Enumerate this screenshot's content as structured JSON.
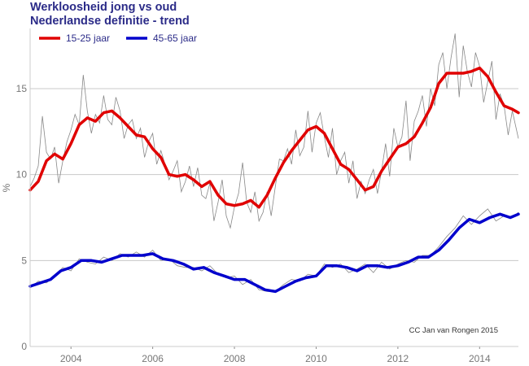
{
  "chart_data": {
    "type": "line",
    "title": [
      "Werkloosheid jong vs oud",
      "Nederlandse definitie - trend"
    ],
    "ylabel": "%",
    "xlabel": "",
    "xlim": [
      2003.0,
      2014.95
    ],
    "ylim": [
      0,
      18.5
    ],
    "x_ticks": [
      2004,
      2006,
      2008,
      2010,
      2012,
      2014
    ],
    "y_ticks": [
      0,
      5,
      10,
      15
    ],
    "grid": "horizontal",
    "legend_position": "top-left",
    "credit": "CC Jan van Rongen 2015",
    "colors": {
      "red": "#e00000",
      "blue": "#0000cc",
      "raw": "#888888",
      "grid": "#c8c8c8"
    },
    "series": [
      {
        "name": "15-25 jaar",
        "color": "#e00000",
        "kind": "trend",
        "x": [
          2003.0,
          2003.2,
          2003.4,
          2003.6,
          2003.8,
          2004.0,
          2004.2,
          2004.4,
          2004.6,
          2004.8,
          2005.0,
          2005.2,
          2005.4,
          2005.6,
          2005.8,
          2006.0,
          2006.2,
          2006.4,
          2006.6,
          2006.8,
          2007.0,
          2007.2,
          2007.4,
          2007.6,
          2007.8,
          2008.0,
          2008.2,
          2008.4,
          2008.6,
          2008.8,
          2009.0,
          2009.2,
          2009.4,
          2009.6,
          2009.8,
          2010.0,
          2010.2,
          2010.4,
          2010.6,
          2010.8,
          2011.0,
          2011.2,
          2011.4,
          2011.6,
          2011.8,
          2012.0,
          2012.2,
          2012.4,
          2012.6,
          2012.8,
          2013.0,
          2013.2,
          2013.4,
          2013.6,
          2013.8,
          2014.0,
          2014.2,
          2014.4,
          2014.6,
          2014.8,
          2014.95
        ],
        "y": [
          9.1,
          9.6,
          10.8,
          11.2,
          10.9,
          11.8,
          12.9,
          13.3,
          13.1,
          13.6,
          13.7,
          13.3,
          12.8,
          12.3,
          12.2,
          11.5,
          11.0,
          10.0,
          9.9,
          10.0,
          9.7,
          9.3,
          9.6,
          8.8,
          8.3,
          8.2,
          8.3,
          8.5,
          8.1,
          8.8,
          9.8,
          10.7,
          11.4,
          12.0,
          12.6,
          12.8,
          12.4,
          11.5,
          10.6,
          10.3,
          9.7,
          9.1,
          9.3,
          10.2,
          10.9,
          11.6,
          11.8,
          12.2,
          13.0,
          13.9,
          15.3,
          15.9,
          15.9,
          15.9,
          16.0,
          16.2,
          15.7,
          14.8,
          14.0,
          13.8,
          13.6
        ]
      },
      {
        "name": "45-65 jaar",
        "color": "#0000cc",
        "kind": "trend",
        "x": [
          2003.0,
          2003.25,
          2003.5,
          2003.75,
          2004.0,
          2004.25,
          2004.5,
          2004.75,
          2005.0,
          2005.25,
          2005.5,
          2005.75,
          2006.0,
          2006.25,
          2006.5,
          2006.75,
          2007.0,
          2007.25,
          2007.5,
          2007.75,
          2008.0,
          2008.25,
          2008.5,
          2008.75,
          2009.0,
          2009.25,
          2009.5,
          2009.75,
          2010.0,
          2010.25,
          2010.5,
          2010.75,
          2011.0,
          2011.25,
          2011.5,
          2011.75,
          2012.0,
          2012.25,
          2012.5,
          2012.75,
          2013.0,
          2013.25,
          2013.5,
          2013.75,
          2014.0,
          2014.25,
          2014.5,
          2014.75,
          2014.95
        ],
        "y": [
          3.5,
          3.7,
          3.9,
          4.4,
          4.6,
          5.0,
          5.0,
          4.9,
          5.1,
          5.3,
          5.3,
          5.3,
          5.4,
          5.1,
          5.0,
          4.8,
          4.5,
          4.6,
          4.3,
          4.1,
          3.9,
          3.9,
          3.6,
          3.3,
          3.2,
          3.5,
          3.8,
          4.0,
          4.1,
          4.7,
          4.7,
          4.6,
          4.4,
          4.7,
          4.7,
          4.6,
          4.7,
          4.9,
          5.2,
          5.2,
          5.6,
          6.2,
          6.9,
          7.4,
          7.2,
          7.5,
          7.7,
          7.5,
          7.7
        ]
      },
      {
        "kind": "raw",
        "color": "#888888",
        "x": [
          2003.0,
          2003.1,
          2003.2,
          2003.3,
          2003.4,
          2003.5,
          2003.6,
          2003.7,
          2003.8,
          2003.9,
          2004.0,
          2004.1,
          2004.2,
          2004.3,
          2004.4,
          2004.5,
          2004.6,
          2004.7,
          2004.8,
          2004.9,
          2005.0,
          2005.1,
          2005.2,
          2005.3,
          2005.4,
          2005.5,
          2005.6,
          2005.7,
          2005.8,
          2005.9,
          2006.0,
          2006.1,
          2006.2,
          2006.3,
          2006.4,
          2006.5,
          2006.6,
          2006.7,
          2006.8,
          2006.9,
          2007.0,
          2007.1,
          2007.2,
          2007.3,
          2007.4,
          2007.5,
          2007.6,
          2007.7,
          2007.8,
          2007.9,
          2008.0,
          2008.1,
          2008.2,
          2008.3,
          2008.4,
          2008.5,
          2008.6,
          2008.7,
          2008.8,
          2008.9,
          2009.0,
          2009.1,
          2009.2,
          2009.3,
          2009.4,
          2009.5,
          2009.6,
          2009.7,
          2009.8,
          2009.9,
          2010.0,
          2010.1,
          2010.2,
          2010.3,
          2010.4,
          2010.5,
          2010.6,
          2010.7,
          2010.8,
          2010.9,
          2011.0,
          2011.1,
          2011.2,
          2011.3,
          2011.4,
          2011.5,
          2011.6,
          2011.7,
          2011.8,
          2011.9,
          2012.0,
          2012.1,
          2012.2,
          2012.3,
          2012.4,
          2012.5,
          2012.6,
          2012.7,
          2012.8,
          2012.9,
          2013.0,
          2013.1,
          2013.2,
          2013.3,
          2013.4,
          2013.5,
          2013.6,
          2013.7,
          2013.8,
          2013.9,
          2014.0,
          2014.1,
          2014.2,
          2014.3,
          2014.4,
          2014.5,
          2014.6,
          2014.7,
          2014.8,
          2014.95
        ],
        "y": [
          9.3,
          9.8,
          10.5,
          13.4,
          11.3,
          10.9,
          11.6,
          9.5,
          10.8,
          11.9,
          12.6,
          13.5,
          12.9,
          15.8,
          13.7,
          12.4,
          13.5,
          13.0,
          14.6,
          13.2,
          12.9,
          14.5,
          13.7,
          12.1,
          12.9,
          13.2,
          12.1,
          12.7,
          11.0,
          11.9,
          12.4,
          10.6,
          11.4,
          10.6,
          9.7,
          10.2,
          10.8,
          9.0,
          9.6,
          10.5,
          9.3,
          10.4,
          8.8,
          8.6,
          9.5,
          7.3,
          8.4,
          9.7,
          7.6,
          6.9,
          8.1,
          8.9,
          10.7,
          8.4,
          7.8,
          9.0,
          7.3,
          7.8,
          9.0,
          7.6,
          9.3,
          10.9,
          10.8,
          11.5,
          10.6,
          12.6,
          11.1,
          11.6,
          13.7,
          11.3,
          13.0,
          13.6,
          12.2,
          11.0,
          12.7,
          10.0,
          10.8,
          11.3,
          9.5,
          10.8,
          8.6,
          9.6,
          8.9,
          9.7,
          10.3,
          8.9,
          10.2,
          11.8,
          9.9,
          12.7,
          11.6,
          12.2,
          14.3,
          10.8,
          13.1,
          13.7,
          14.6,
          12.8,
          15.0,
          14.0,
          16.4,
          17.1,
          15.0,
          16.8,
          18.2,
          14.5,
          17.5,
          16.0,
          15.1,
          17.1,
          16.3,
          14.2,
          15.4,
          16.6,
          13.2,
          14.7,
          14.0,
          12.3,
          13.7,
          12.1
        ]
      },
      {
        "kind": "raw",
        "color": "#888888",
        "x": [
          2003.0,
          2003.2,
          2003.4,
          2003.6,
          2003.8,
          2004.0,
          2004.2,
          2004.4,
          2004.6,
          2004.8,
          2005.0,
          2005.2,
          2005.4,
          2005.6,
          2005.8,
          2006.0,
          2006.2,
          2006.4,
          2006.6,
          2006.8,
          2007.0,
          2007.2,
          2007.4,
          2007.6,
          2007.8,
          2008.0,
          2008.2,
          2008.4,
          2008.6,
          2008.8,
          2009.0,
          2009.2,
          2009.4,
          2009.6,
          2009.8,
          2010.0,
          2010.2,
          2010.4,
          2010.6,
          2010.8,
          2011.0,
          2011.2,
          2011.4,
          2011.6,
          2011.8,
          2012.0,
          2012.2,
          2012.4,
          2012.6,
          2012.8,
          2013.0,
          2013.2,
          2013.4,
          2013.6,
          2013.8,
          2014.0,
          2014.2,
          2014.4,
          2014.6,
          2014.8,
          2014.95
        ],
        "y": [
          3.4,
          3.8,
          3.7,
          4.1,
          4.6,
          4.4,
          5.1,
          4.9,
          4.8,
          5.2,
          5.0,
          5.4,
          5.2,
          5.5,
          5.2,
          5.6,
          5.0,
          5.1,
          4.7,
          4.6,
          4.6,
          4.4,
          4.7,
          4.2,
          4.0,
          4.1,
          3.6,
          3.9,
          3.3,
          3.2,
          3.2,
          3.6,
          3.9,
          3.8,
          4.2,
          4.1,
          4.8,
          4.6,
          4.8,
          4.3,
          4.5,
          4.8,
          4.3,
          4.9,
          4.5,
          4.8,
          5.0,
          4.9,
          5.3,
          5.3,
          5.8,
          6.4,
          6.9,
          7.6,
          7.1,
          7.6,
          8.0,
          7.3,
          7.6,
          7.5,
          7.8
        ]
      }
    ]
  }
}
